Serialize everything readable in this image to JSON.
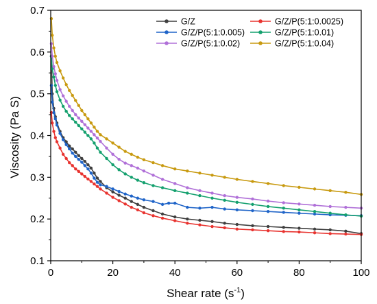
{
  "chart_data": {
    "type": "line",
    "xlabel": "Shear rate (s",
    "xlabel_sup": "-1",
    "xlabel_end": ")",
    "ylabel": "Viscosity (Pa S)",
    "xlim": [
      0,
      100
    ],
    "ylim": [
      0.1,
      0.7
    ],
    "xticks": [
      0,
      20,
      40,
      60,
      80,
      100
    ],
    "yticks": [
      0.1,
      0.2,
      0.3,
      0.4,
      0.5,
      0.6,
      0.7
    ],
    "xtick_labels": [
      "0",
      "20",
      "40",
      "60",
      "80",
      "100"
    ],
    "ytick_labels": [
      "0.1",
      "0.2",
      "0.3",
      "0.4",
      "0.5",
      "0.6",
      "0.7"
    ],
    "grid": false,
    "legend_position": "top-right",
    "series": [
      {
        "name": "G/Z",
        "color": "#3f3f3f",
        "x": [
          0.2,
          0.5,
          1,
          1.5,
          2,
          3,
          4,
          5,
          6,
          7,
          8,
          9,
          10,
          11,
          12,
          13,
          14,
          15,
          16,
          18,
          20,
          22,
          24,
          26,
          28,
          30,
          33,
          36,
          40,
          44,
          48,
          52,
          56,
          60,
          65,
          70,
          75,
          80,
          85,
          90,
          95,
          100
        ],
        "y": [
          0.59,
          0.5,
          0.465,
          0.445,
          0.43,
          0.41,
          0.395,
          0.385,
          0.375,
          0.368,
          0.36,
          0.352,
          0.345,
          0.338,
          0.33,
          0.322,
          0.31,
          0.298,
          0.29,
          0.275,
          0.265,
          0.257,
          0.25,
          0.242,
          0.235,
          0.228,
          0.22,
          0.212,
          0.205,
          0.2,
          0.197,
          0.194,
          0.19,
          0.187,
          0.184,
          0.182,
          0.18,
          0.178,
          0.176,
          0.174,
          0.171,
          0.165
        ]
      },
      {
        "name": "G/Z/P(5:1:0.0025)",
        "color": "#e8332f",
        "x": [
          0.2,
          0.5,
          1,
          1.5,
          2,
          3,
          4,
          5,
          6,
          7,
          8,
          9,
          10,
          11,
          12,
          13,
          14,
          15,
          16,
          18,
          20,
          22,
          24,
          26,
          28,
          30,
          33,
          36,
          40,
          44,
          48,
          52,
          56,
          60,
          65,
          70,
          75,
          80,
          85,
          90,
          95,
          100
        ],
        "y": [
          0.455,
          0.43,
          0.41,
          0.395,
          0.385,
          0.37,
          0.355,
          0.345,
          0.335,
          0.328,
          0.32,
          0.314,
          0.308,
          0.302,
          0.296,
          0.29,
          0.284,
          0.278,
          0.272,
          0.262,
          0.252,
          0.244,
          0.236,
          0.228,
          0.222,
          0.215,
          0.208,
          0.202,
          0.196,
          0.19,
          0.186,
          0.182,
          0.179,
          0.176,
          0.174,
          0.172,
          0.17,
          0.169,
          0.167,
          0.165,
          0.164,
          0.163
        ]
      },
      {
        "name": "G/Z/P(5:1:0.005)",
        "color": "#1f64c8",
        "x": [
          0.2,
          0.5,
          1,
          1.5,
          2,
          3,
          4,
          5,
          6,
          7,
          8,
          9,
          10,
          11,
          12,
          13,
          14,
          15,
          16,
          18,
          20,
          22,
          24,
          26,
          28,
          30,
          33,
          36,
          38,
          40,
          44,
          48,
          52,
          56,
          60,
          65,
          70,
          75,
          80,
          85,
          90,
          95,
          100
        ],
        "y": [
          0.52,
          0.48,
          0.455,
          0.44,
          0.425,
          0.405,
          0.39,
          0.378,
          0.368,
          0.358,
          0.35,
          0.343,
          0.336,
          0.328,
          0.32,
          0.31,
          0.298,
          0.288,
          0.282,
          0.278,
          0.272,
          0.266,
          0.26,
          0.255,
          0.25,
          0.246,
          0.242,
          0.235,
          0.238,
          0.238,
          0.228,
          0.226,
          0.228,
          0.224,
          0.222,
          0.22,
          0.218,
          0.216,
          0.214,
          0.212,
          0.21,
          0.209,
          0.208
        ]
      },
      {
        "name": "G/Z/P(5:1:0.01)",
        "color": "#14a06e",
        "x": [
          0.2,
          0.5,
          1,
          1.5,
          2,
          3,
          4,
          5,
          6,
          7,
          8,
          9,
          10,
          11,
          12,
          13,
          14,
          15,
          16,
          18,
          20,
          22,
          24,
          26,
          28,
          30,
          33,
          36,
          40,
          44,
          48,
          52,
          56,
          60,
          65,
          70,
          75,
          80,
          85,
          90,
          95,
          100
        ],
        "y": [
          0.59,
          0.56,
          0.54,
          0.52,
          0.505,
          0.485,
          0.47,
          0.458,
          0.448,
          0.44,
          0.432,
          0.424,
          0.416,
          0.408,
          0.4,
          0.392,
          0.382,
          0.37,
          0.36,
          0.345,
          0.33,
          0.318,
          0.308,
          0.3,
          0.293,
          0.287,
          0.28,
          0.275,
          0.268,
          0.262,
          0.256,
          0.25,
          0.245,
          0.24,
          0.235,
          0.23,
          0.226,
          0.222,
          0.218,
          0.214,
          0.21,
          0.207
        ]
      },
      {
        "name": "G/Z/P(5:1:0.02)",
        "color": "#b070d8",
        "x": [
          0.2,
          0.5,
          1,
          1.5,
          2,
          3,
          4,
          5,
          6,
          7,
          8,
          9,
          10,
          11,
          12,
          13,
          14,
          15,
          16,
          18,
          20,
          22,
          24,
          26,
          28,
          30,
          33,
          36,
          40,
          44,
          48,
          52,
          56,
          60,
          65,
          70,
          75,
          80,
          85,
          90,
          95,
          100
        ],
        "y": [
          0.62,
          0.59,
          0.565,
          0.548,
          0.532,
          0.51,
          0.495,
          0.482,
          0.47,
          0.46,
          0.45,
          0.442,
          0.434,
          0.426,
          0.418,
          0.41,
          0.402,
          0.394,
          0.386,
          0.37,
          0.355,
          0.343,
          0.334,
          0.328,
          0.322,
          0.315,
          0.305,
          0.295,
          0.285,
          0.275,
          0.268,
          0.262,
          0.256,
          0.252,
          0.248,
          0.243,
          0.239,
          0.236,
          0.233,
          0.23,
          0.228,
          0.226
        ]
      },
      {
        "name": "G/Z/P(5:1:0.04)",
        "color": "#c89a10",
        "x": [
          0.2,
          0.5,
          1,
          1.5,
          2,
          3,
          4,
          5,
          6,
          7,
          8,
          9,
          10,
          11,
          12,
          13,
          14,
          15,
          16,
          18,
          20,
          22,
          24,
          26,
          28,
          30,
          33,
          36,
          40,
          44,
          48,
          52,
          56,
          60,
          65,
          70,
          75,
          80,
          85,
          90,
          95,
          100
        ],
        "y": [
          0.68,
          0.64,
          0.61,
          0.59,
          0.575,
          0.555,
          0.538,
          0.522,
          0.508,
          0.496,
          0.484,
          0.472,
          0.46,
          0.45,
          0.44,
          0.43,
          0.42,
          0.41,
          0.402,
          0.392,
          0.382,
          0.372,
          0.362,
          0.355,
          0.348,
          0.342,
          0.335,
          0.328,
          0.32,
          0.315,
          0.31,
          0.305,
          0.3,
          0.295,
          0.29,
          0.285,
          0.28,
          0.276,
          0.272,
          0.268,
          0.264,
          0.259
        ]
      }
    ]
  }
}
